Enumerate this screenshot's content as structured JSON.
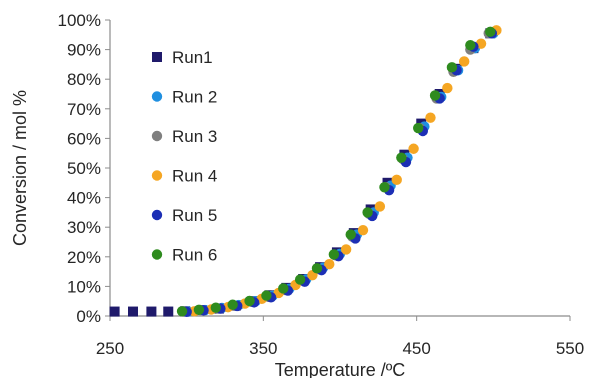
{
  "chart_data": {
    "type": "scatter",
    "xlabel": "Temperature /ºC",
    "ylabel": "Conversion / mol %",
    "xlim": [
      250,
      550
    ],
    "ylim": [
      0,
      100
    ],
    "x_ticks": [
      250,
      350,
      450,
      550
    ],
    "y_ticks": [
      0,
      10,
      20,
      30,
      40,
      50,
      60,
      70,
      80,
      90,
      100
    ],
    "x_tick_labels": [
      "250",
      "350",
      "450",
      "550"
    ],
    "y_tick_labels": [
      "0%",
      "10%",
      "20%",
      "30%",
      "40%",
      "50%",
      "60%",
      "70%",
      "80%",
      "90%",
      "100%"
    ],
    "grid": false,
    "legend_position": "top-left",
    "series": [
      {
        "name": "Run1",
        "marker": "square",
        "color": "#1f1a6b",
        "points": [
          [
            253,
            1.5
          ],
          [
            265,
            1.5
          ],
          [
            277,
            1.5
          ],
          [
            288,
            1.5
          ],
          [
            299,
            1.6
          ],
          [
            310,
            2
          ],
          [
            321,
            2.5
          ],
          [
            332,
            3.5
          ],
          [
            343,
            5
          ],
          [
            354,
            7
          ],
          [
            365,
            9.5
          ],
          [
            376,
            12.5
          ],
          [
            387,
            16.5
          ],
          [
            398,
            21.5
          ],
          [
            409,
            28
          ],
          [
            420,
            36
          ],
          [
            431,
            45
          ],
          [
            442,
            54.5
          ],
          [
            453,
            65
          ],
          [
            465,
            75
          ],
          [
            476,
            83.5
          ],
          [
            487,
            90.5
          ],
          [
            498,
            95.5
          ]
        ]
      },
      {
        "name": "Run 2",
        "marker": "circle",
        "color": "#1f8fe0",
        "points": [
          [
            301,
            1.5
          ],
          [
            312,
            2
          ],
          [
            323,
            2.7
          ],
          [
            334,
            3.7
          ],
          [
            345,
            5
          ],
          [
            356,
            6.8
          ],
          [
            367,
            9.2
          ],
          [
            378,
            12.4
          ],
          [
            389,
            16.3
          ],
          [
            400,
            21
          ],
          [
            411,
            27.5
          ],
          [
            422,
            35
          ],
          [
            433,
            44
          ],
          [
            444,
            53.5
          ],
          [
            455,
            64
          ],
          [
            466,
            74
          ],
          [
            477,
            83
          ],
          [
            488,
            90.5
          ],
          [
            500,
            95.5
          ]
        ]
      },
      {
        "name": "Run 3",
        "marker": "circle",
        "color": "#7f7f7f",
        "points": [
          [
            298,
            1.5
          ],
          [
            309,
            2
          ],
          [
            320,
            2.6
          ],
          [
            331,
            3.5
          ],
          [
            342,
            4.8
          ],
          [
            353,
            6.5
          ],
          [
            364,
            8.8
          ],
          [
            375,
            12
          ],
          [
            386,
            15.8
          ],
          [
            397,
            20.5
          ],
          [
            408,
            26.8
          ],
          [
            419,
            34.5
          ],
          [
            430,
            43.5
          ],
          [
            441,
            53
          ],
          [
            452,
            63.5
          ],
          [
            463,
            73.5
          ],
          [
            474,
            82.5
          ],
          [
            485,
            90
          ],
          [
            497,
            95.5
          ]
        ]
      },
      {
        "name": "Run 4",
        "marker": "circle",
        "color": "#f5a623",
        "points": [
          [
            305,
            1.6
          ],
          [
            316,
            2.2
          ],
          [
            327,
            3
          ],
          [
            338,
            4.2
          ],
          [
            349,
            5.8
          ],
          [
            360,
            7.8
          ],
          [
            371,
            10.5
          ],
          [
            382,
            13.8
          ],
          [
            393,
            17.5
          ],
          [
            404,
            22.5
          ],
          [
            415,
            29
          ],
          [
            426,
            37
          ],
          [
            437,
            46
          ],
          [
            448,
            56.5
          ],
          [
            459,
            67
          ],
          [
            470,
            77
          ],
          [
            481,
            86
          ],
          [
            492,
            92
          ],
          [
            502,
            96.5
          ]
        ]
      },
      {
        "name": "Run 5",
        "marker": "circle",
        "color": "#1c2fb5",
        "points": [
          [
            300,
            1.4
          ],
          [
            311,
            1.9
          ],
          [
            322,
            2.5
          ],
          [
            333,
            3.4
          ],
          [
            344,
            4.6
          ],
          [
            355,
            6.3
          ],
          [
            366,
            8.6
          ],
          [
            377,
            11.6
          ],
          [
            388,
            15.5
          ],
          [
            399,
            20.2
          ],
          [
            410,
            26.2
          ],
          [
            421,
            33.8
          ],
          [
            432,
            42.5
          ],
          [
            443,
            52
          ],
          [
            454,
            62.5
          ],
          [
            465,
            73.5
          ],
          [
            476,
            83
          ],
          [
            487,
            91
          ],
          [
            499,
            95.5
          ]
        ]
      },
      {
        "name": "Run 6",
        "marker": "circle",
        "color": "#2e8b1e",
        "points": [
          [
            297,
            1.6
          ],
          [
            308,
            2.1
          ],
          [
            319,
            2.8
          ],
          [
            330,
            3.8
          ],
          [
            341,
            5.1
          ],
          [
            352,
            6.9
          ],
          [
            363,
            9.3
          ],
          [
            374,
            12.3
          ],
          [
            385,
            16.1
          ],
          [
            396,
            20.8
          ],
          [
            407,
            27.5
          ],
          [
            418,
            35
          ],
          [
            429,
            43.5
          ],
          [
            440,
            53.5
          ],
          [
            451,
            63.5
          ],
          [
            462,
            74.5
          ],
          [
            473,
            84
          ],
          [
            485,
            91.5
          ],
          [
            498,
            96
          ]
        ]
      }
    ]
  }
}
